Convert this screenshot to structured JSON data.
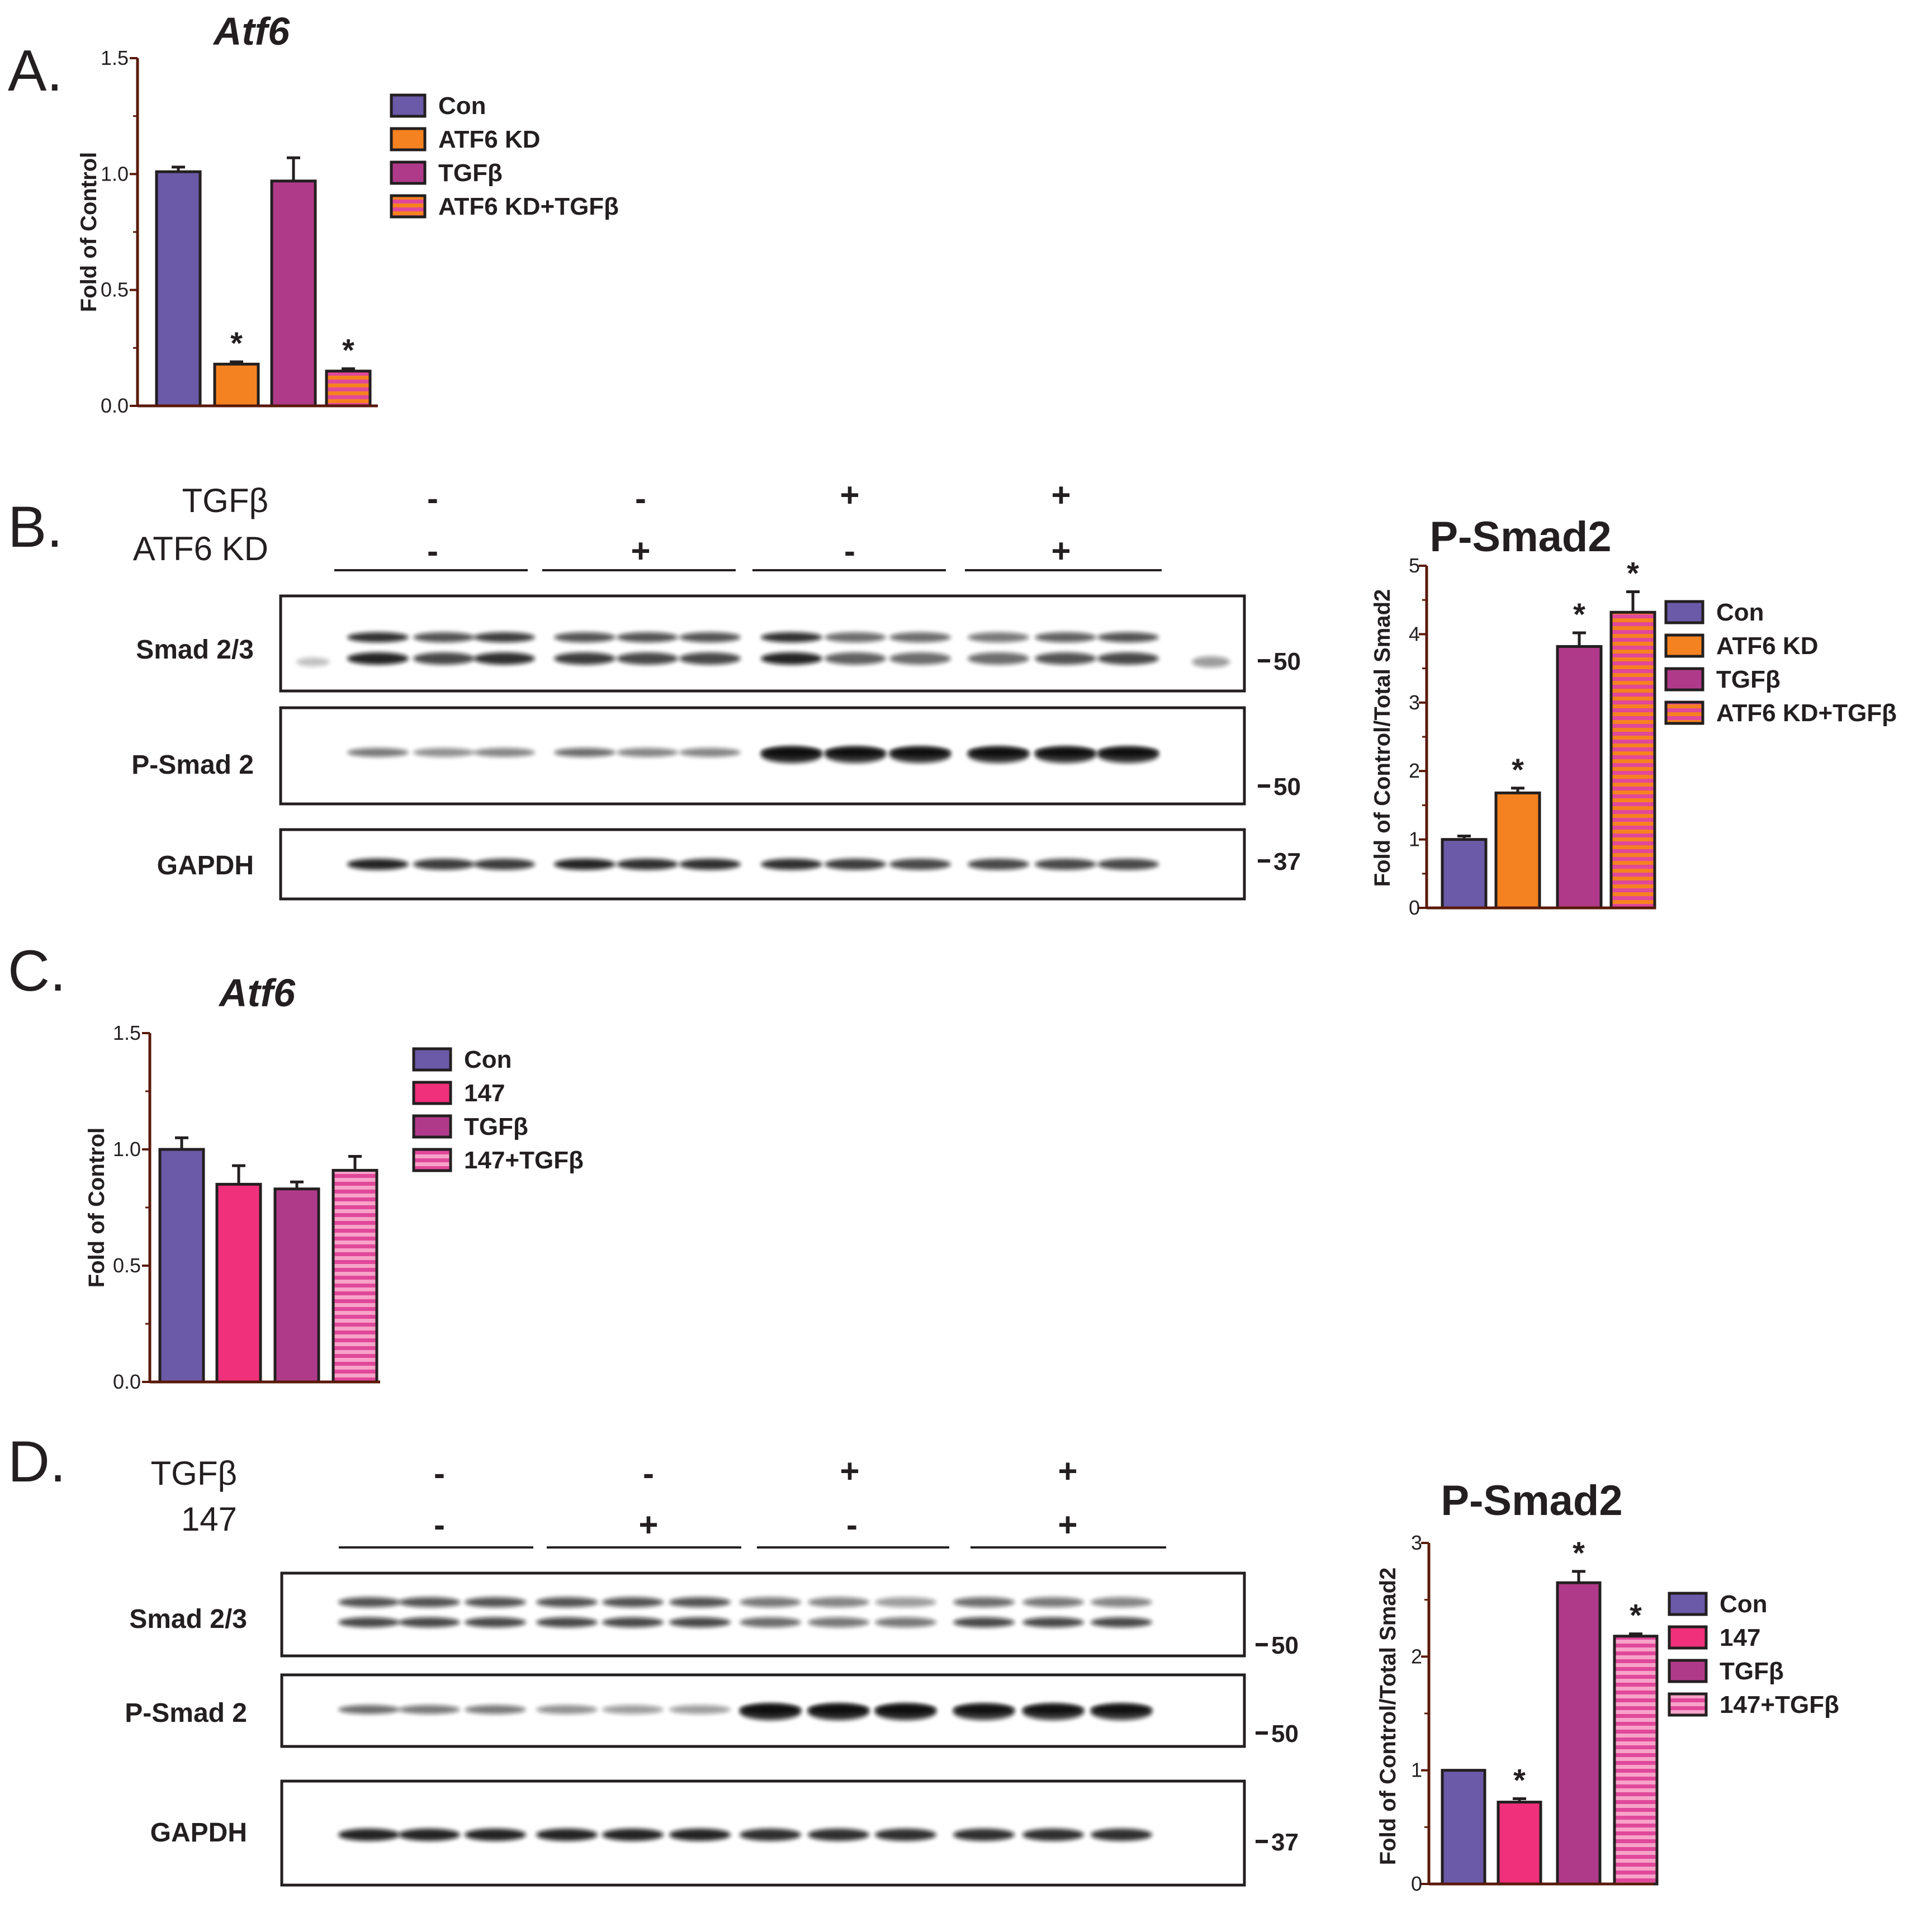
{
  "colors": {
    "con": "#6a5aa8",
    "atf6kd": "#f58220",
    "tgfb": "#b03a8a",
    "stripe_a": "#f58220",
    "stripe_b": "#e0489a",
    "inh147": "#f0307a",
    "ink": "#231f20",
    "axis": "#5a1a0a"
  },
  "panels": {
    "A": {
      "letter": "A."
    },
    "B": {
      "letter": "B."
    },
    "C": {
      "letter": "C."
    },
    "D": {
      "letter": "D."
    }
  },
  "blots": {
    "B": {
      "row1_label": "TGFβ",
      "row1_signs": [
        "-",
        "-",
        "+",
        "+"
      ],
      "row2_label": "ATF6 KD",
      "row2_signs": [
        "-",
        "+",
        "-",
        "+"
      ],
      "bands": [
        "Smad 2/3",
        "P-Smad 2",
        "GAPDH"
      ],
      "mw": [
        "50",
        "50",
        "37"
      ]
    },
    "D": {
      "row1_label": "TGFβ",
      "row1_signs": [
        "-",
        "-",
        "+",
        "+"
      ],
      "row2_label": "147",
      "row2_signs": [
        "-",
        "+",
        "-",
        "+"
      ],
      "bands": [
        "Smad 2/3",
        "P-Smad 2",
        "GAPDH"
      ],
      "mw": [
        "50",
        "50",
        "37"
      ]
    }
  },
  "chart_data": [
    {
      "id": "A",
      "type": "bar",
      "title": "Atf6",
      "ylabel": "Fold of Control",
      "ylim": [
        0,
        1.5
      ],
      "yticks": [
        "0.0",
        "0.5",
        "1.0",
        "1.5"
      ],
      "categories": [
        "Con",
        "ATF6 KD",
        "TGFβ",
        "ATF6 KD+TGFβ"
      ],
      "values": [
        1.01,
        0.18,
        0.97,
        0.15
      ],
      "errors": [
        0.02,
        0.01,
        0.1,
        0.01
      ],
      "significant": [
        false,
        true,
        false,
        true
      ],
      "legend": [
        "Con",
        "ATF6 KD",
        "TGFβ",
        "ATF6 KD+TGFβ"
      ],
      "star": "*"
    },
    {
      "id": "B",
      "type": "bar",
      "title": "P-Smad2",
      "ylabel": "Fold of Control/Total Smad2",
      "ylim": [
        0,
        5
      ],
      "yticks": [
        "0",
        "1",
        "2",
        "3",
        "4",
        "5"
      ],
      "categories": [
        "Con",
        "ATF6 KD",
        "TGFβ",
        "ATF6 KD+TGFβ"
      ],
      "values": [
        1.0,
        1.68,
        3.82,
        4.32
      ],
      "errors": [
        0.05,
        0.07,
        0.2,
        0.3
      ],
      "significant": [
        false,
        true,
        true,
        true
      ],
      "legend": [
        "Con",
        "ATF6 KD",
        "TGFβ",
        "ATF6 KD+TGFβ"
      ],
      "star": "*"
    },
    {
      "id": "C",
      "type": "bar",
      "title": "Atf6",
      "ylabel": "Fold of Control",
      "ylim": [
        0,
        1.5
      ],
      "yticks": [
        "0.0",
        "0.5",
        "1.0",
        "1.5"
      ],
      "categories": [
        "Con",
        "147",
        "TGFβ",
        "147+TGFβ"
      ],
      "values": [
        1.0,
        0.85,
        0.83,
        0.91
      ],
      "errors": [
        0.05,
        0.08,
        0.03,
        0.06
      ],
      "significant": [
        false,
        false,
        false,
        false
      ],
      "legend": [
        "Con",
        "147",
        "TGFβ",
        "147+TGFβ"
      ],
      "star": "*"
    },
    {
      "id": "D",
      "type": "bar",
      "title": "P-Smad2",
      "ylabel": "Fold of Control/Total Smad2",
      "ylim": [
        0,
        3
      ],
      "yticks": [
        "0",
        "1",
        "2",
        "3"
      ],
      "categories": [
        "Con",
        "147",
        "TGFβ",
        "147+TGFβ"
      ],
      "values": [
        1.0,
        0.72,
        2.65,
        2.18
      ],
      "errors": [
        0.0,
        0.03,
        0.1,
        0.02
      ],
      "significant": [
        false,
        true,
        true,
        true
      ],
      "legend": [
        "Con",
        "147",
        "TGFβ",
        "147+TGFβ"
      ],
      "star": "*"
    }
  ]
}
